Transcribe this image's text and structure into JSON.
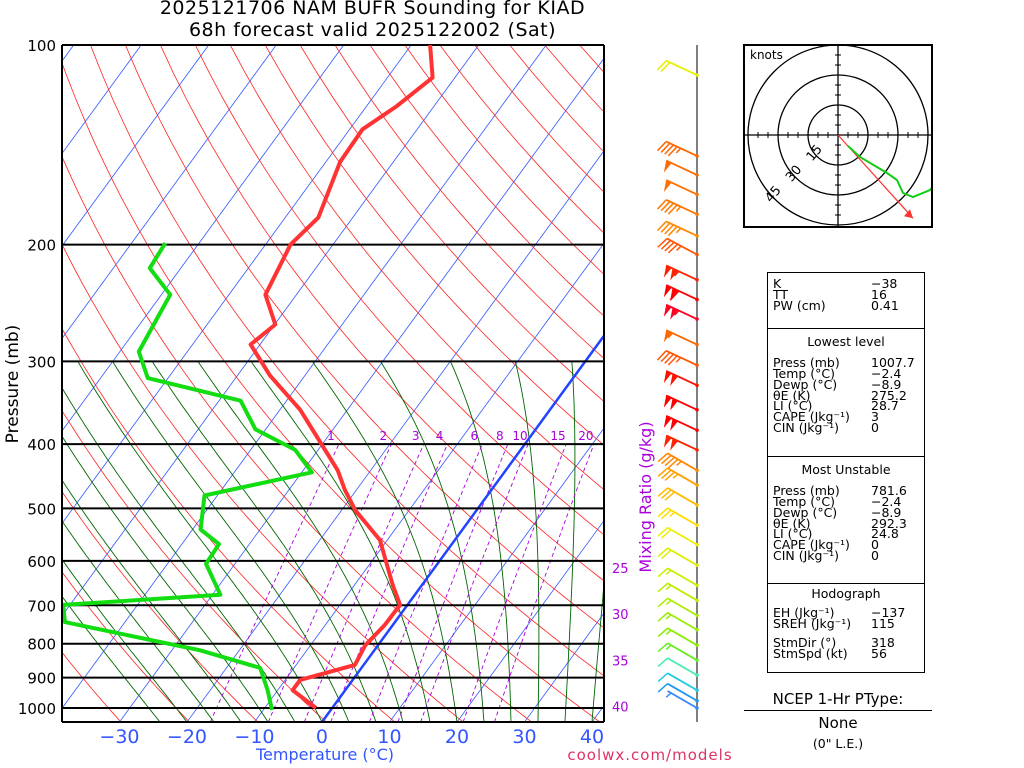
{
  "header": {
    "title_line1": "2025121706 NAM BUFR Sounding for KIAD",
    "title_line2": "68h forecast valid 2025122002 (Sat)"
  },
  "footer": {
    "credit": "coolwx.com/models"
  },
  "colors": {
    "temperature": "#ff3333",
    "dewpoint": "#11dd11",
    "isotherm": "#3355ff",
    "dry_adiabat": "#ff2222",
    "moist_adiabat": "#006600",
    "mixing_ratio": "#aa00dd",
    "zero_isotherm": "#2244ff"
  },
  "chart_data": {
    "type": "line",
    "subtype": "skew-t log-p",
    "ylabel": "Pressure (mb)",
    "xlabel": "Temperature (°C)",
    "mixing_ratio_label": "Mixing Ratio (g/kg)",
    "ylim": [
      1050,
      100
    ],
    "pressure_ticks": [
      "100",
      "200",
      "300",
      "400",
      "500",
      "600",
      "700",
      "800",
      "900",
      "1000"
    ],
    "pressure_tick_values": [
      100,
      200,
      300,
      400,
      500,
      600,
      700,
      800,
      900,
      1000
    ],
    "temp_ticks": [
      "−30",
      "−20",
      "−10",
      "0",
      "10",
      "20",
      "30",
      "40"
    ],
    "temp_tick_values": [
      -30,
      -20,
      -10,
      0,
      10,
      20,
      30,
      40
    ],
    "right_temp_labels": [
      "25",
      "30",
      "35",
      "40"
    ],
    "right_temp_values": [
      25,
      30,
      35,
      40
    ],
    "mixing_ratio_values": [
      "1",
      "2",
      "3",
      "4",
      "6",
      "8",
      "10",
      "15",
      "20"
    ],
    "series": [
      {
        "name": "Temperature",
        "color": "#ff3333",
        "pressure": [
          1000,
          940,
          907,
          861,
          804,
          750,
          699,
          653,
          558,
          503,
          469,
          438,
          355,
          315,
          283,
          264,
          238,
          200,
          182,
          150,
          134,
          124,
          112,
          100
        ],
        "temperature": [
          -2.4,
          -7.8,
          -7.8,
          -1.3,
          -1.9,
          -1.2,
          -1.1,
          -4.3,
          -11.1,
          -18,
          -21.7,
          -24.9,
          -37,
          -45.2,
          -51.4,
          -49.9,
          -54.6,
          -56.3,
          -55.1,
          -57.9,
          -58.1,
          -55.6,
          -53.3,
          -57.2
        ]
      },
      {
        "name": "Dewpoint",
        "color": "#11dd11",
        "pressure": [
          1007,
          940,
          870,
          818,
          742,
          699,
          675,
          606,
          566,
          538,
          478,
          441,
          408,
          380,
          344,
          318,
          290,
          238,
          217,
          199
        ],
        "temperature": [
          -8.7,
          -11.5,
          -15,
          -25.9,
          -48.9,
          -51,
          -28.8,
          -34.3,
          -34.5,
          -38.8,
          -41.9,
          -28.5,
          -33.4,
          -41.5,
          -46.8,
          -63,
          -67.2,
          -68.7,
          -74.6,
          -75
        ]
      }
    ],
    "winds": [
      {
        "p": 111,
        "dir": 295,
        "spd": 20,
        "color": "#e8f000"
      },
      {
        "p": 147,
        "dir": 295,
        "spd": 45,
        "color": "#ff6600"
      },
      {
        "p": 157,
        "dir": 295,
        "spd": 50,
        "color": "#ff6a00"
      },
      {
        "p": 168,
        "dir": 295,
        "spd": 50,
        "color": "#ff7000"
      },
      {
        "p": 180,
        "dir": 295,
        "spd": 45,
        "color": "#ff7700"
      },
      {
        "p": 194,
        "dir": 295,
        "spd": 45,
        "color": "#ff8800"
      },
      {
        "p": 207,
        "dir": 298,
        "spd": 45,
        "color": "#ff5500"
      },
      {
        "p": 226,
        "dir": 295,
        "spd": 105,
        "color": "#ff2200"
      },
      {
        "p": 242,
        "dir": 295,
        "spd": 110,
        "color": "#ff0000"
      },
      {
        "p": 259,
        "dir": 295,
        "spd": 105,
        "color": "#ff0022"
      },
      {
        "p": 283,
        "dir": 295,
        "spd": 55,
        "color": "#ff6600"
      },
      {
        "p": 304,
        "dir": 295,
        "spd": 45,
        "color": "#ff5500"
      },
      {
        "p": 326,
        "dir": 295,
        "spd": 100,
        "color": "#ff1100"
      },
      {
        "p": 355,
        "dir": 295,
        "spd": 100,
        "color": "#ff0000"
      },
      {
        "p": 381,
        "dir": 295,
        "spd": 100,
        "color": "#ff0000"
      },
      {
        "p": 408,
        "dir": 295,
        "spd": 100,
        "color": "#ff2200"
      },
      {
        "p": 438,
        "dir": 300,
        "spd": 45,
        "color": "#ff8800"
      },
      {
        "p": 461,
        "dir": 300,
        "spd": 35,
        "color": "#ffa000"
      },
      {
        "p": 494,
        "dir": 300,
        "spd": 30,
        "color": "#ffbb00"
      },
      {
        "p": 530,
        "dir": 300,
        "spd": 25,
        "color": "#ffdd00"
      },
      {
        "p": 567,
        "dir": 300,
        "spd": 20,
        "color": "#eeee00"
      },
      {
        "p": 609,
        "dir": 300,
        "spd": 20,
        "color": "#ddee00"
      },
      {
        "p": 653,
        "dir": 300,
        "spd": 15,
        "color": "#ccee00"
      },
      {
        "p": 688,
        "dir": 300,
        "spd": 15,
        "color": "#bbee00"
      },
      {
        "p": 725,
        "dir": 300,
        "spd": 15,
        "color": "#aaee00"
      },
      {
        "p": 762,
        "dir": 300,
        "spd": 15,
        "color": "#99ee00"
      },
      {
        "p": 804,
        "dir": 300,
        "spd": 15,
        "color": "#88ee00"
      },
      {
        "p": 847,
        "dir": 300,
        "spd": 15,
        "color": "#66ee22"
      },
      {
        "p": 892,
        "dir": 300,
        "spd": 10,
        "color": "#44eeaa"
      },
      {
        "p": 940,
        "dir": 300,
        "spd": 10,
        "color": "#22ccdd"
      },
      {
        "p": 975,
        "dir": 300,
        "spd": 10,
        "color": "#2299ee"
      },
      {
        "p": 1000,
        "dir": 300,
        "spd": 5,
        "color": "#3388ff"
      }
    ],
    "hodograph": {
      "units_label": "knots",
      "ring_labels": [
        "15",
        "30",
        "45"
      ],
      "ring_values": [
        15,
        30,
        45
      ],
      "u": [
        5,
        11,
        24.5,
        29.5,
        32.5,
        37.5,
        46,
        48.5
      ],
      "v": [
        -5.5,
        -11,
        -19,
        -22.5,
        -29,
        -31,
        -27.5,
        -24.5
      ],
      "storm_motion_u": 37.5,
      "storm_motion_v": -41.6
    }
  },
  "stats": {
    "indices": [
      {
        "label": "K",
        "value": "−38"
      },
      {
        "label": "TT",
        "value": "16"
      },
      {
        "label": "PW (cm)",
        "value": "0.41"
      }
    ],
    "lowest": {
      "heading": "Lowest level",
      "rows": [
        {
          "label": "Press (mb)",
          "value": "1007.7"
        },
        {
          "label": "Temp (°C)",
          "value": "−2.4"
        },
        {
          "label": "Dewp (°C)",
          "value": "−8.9"
        },
        {
          "label": "θE (K)",
          "value": "275.2"
        },
        {
          "label": "LI (°C)",
          "value": "28.7"
        },
        {
          "label": "CAPE (Jkg⁻¹)",
          "value": "3"
        },
        {
          "label": "CIN (Jkg⁻¹)",
          "value": "0"
        }
      ]
    },
    "unstable": {
      "heading": "Most Unstable",
      "rows": [
        {
          "label": "Press (mb)",
          "value": "781.6"
        },
        {
          "label": "Temp (°C)",
          "value": "−2.4"
        },
        {
          "label": "Dewp (°C)",
          "value": "−8.9"
        },
        {
          "label": "θE (K)",
          "value": "292.3"
        },
        {
          "label": "LI (°C)",
          "value": "24.8"
        },
        {
          "label": "CAPE (Jkg⁻¹)",
          "value": "0"
        },
        {
          "label": "CIN (Jkg⁻¹)",
          "value": "0"
        }
      ]
    },
    "hodo": {
      "heading": "Hodograph",
      "rows": [
        {
          "label": "EH (Jkg⁻¹)",
          "value": "−137"
        },
        {
          "label": "SREH (Jkg⁻¹)",
          "value": "115"
        },
        {
          "label": "StmDir (°)",
          "value": "318"
        },
        {
          "label": "StmSpd (kt)",
          "value": "56"
        }
      ]
    }
  },
  "ptype": {
    "heading": "NCEP 1-Hr PType:",
    "value": "None",
    "snow": "(0\" L.E.)"
  }
}
